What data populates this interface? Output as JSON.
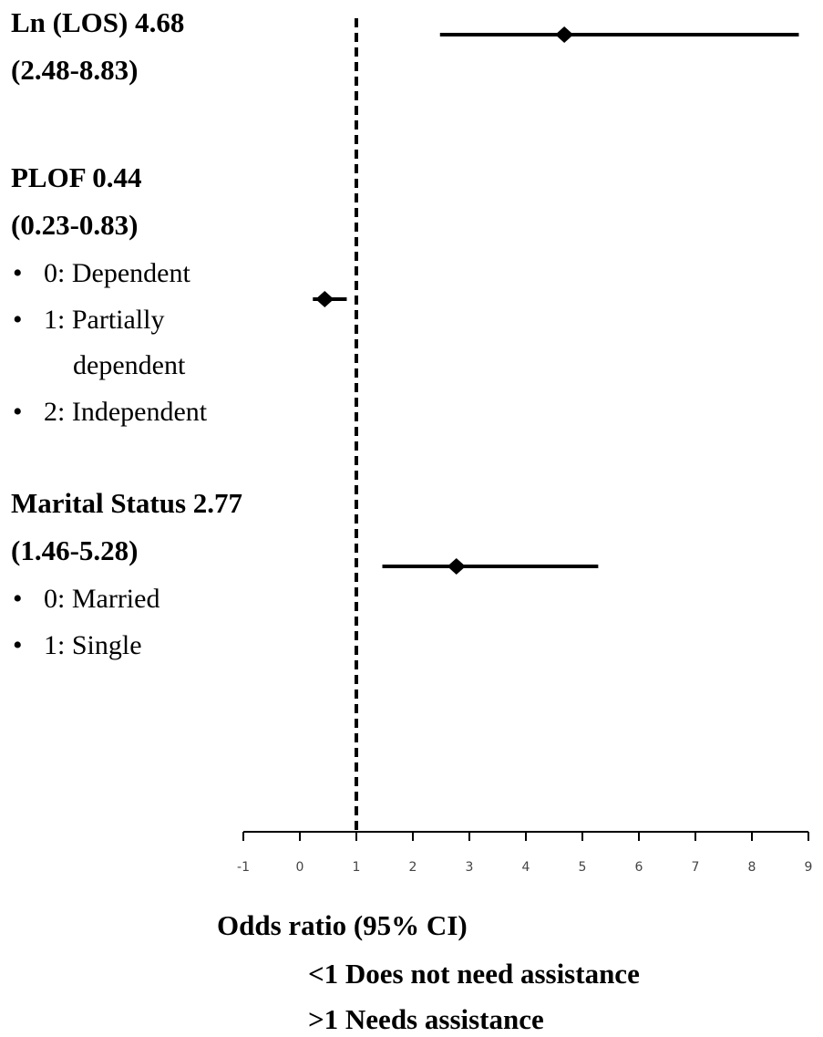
{
  "chart_data": {
    "type": "forest",
    "rows": [
      {
        "label": "Ln (LOS) 4.68",
        "ci_label": "(2.48-8.83)",
        "notes": [],
        "value": 4.68,
        "lower": 2.48,
        "upper": 8.83
      },
      {
        "label": "PLOF 0.44",
        "ci_label": "(0.23-0.83)",
        "notes": [
          [
            "0: Dependent"
          ],
          [
            "1: Partially",
            "dependent"
          ],
          [
            "2: Independent"
          ]
        ],
        "value": 0.44,
        "lower": 0.23,
        "upper": 0.83
      },
      {
        "label": "Marital Status  2.77",
        "ci_label": "(1.46-5.28)",
        "notes": [
          [
            "0: Married"
          ],
          [
            "1: Single"
          ]
        ],
        "value": 2.77,
        "lower": 1.46,
        "upper": 5.28
      }
    ],
    "reference_line": 1,
    "xlim": [
      -1,
      9
    ],
    "xticks": [
      -1,
      0,
      1,
      2,
      3,
      4,
      5,
      6,
      7,
      8,
      9
    ],
    "xlabel": "Odds ratio (95% CI)",
    "annotations": [
      "<1 Does not need assistance",
      ">1 Needs assistance"
    ],
    "color": "#000000"
  }
}
